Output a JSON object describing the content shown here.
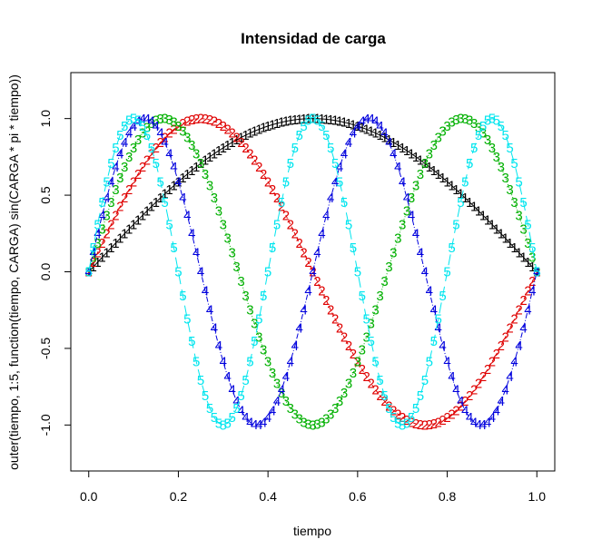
{
  "chart_data": {
    "type": "line",
    "title": "Intensidad de carga",
    "xlabel": "tiempo",
    "ylabel": "outer(tiempo, 1:5, function(tiempo, CARGA) sin(CARGA * pi * tiempo))",
    "xlim": [
      -0.04,
      1.04
    ],
    "ylim": [
      -1.3,
      1.3
    ],
    "x_ticks": [
      0.0,
      0.2,
      0.4,
      0.6,
      0.8,
      1.0
    ],
    "x_tick_labels": [
      "0.0",
      "0.2",
      "0.4",
      "0.6",
      "0.8",
      "1.0"
    ],
    "y_ticks": [
      -1.0,
      -0.5,
      0.0,
      0.5,
      1.0
    ],
    "y_tick_labels": [
      "-1.0",
      "-0.5",
      "0.0",
      "0.5",
      "1.0"
    ],
    "x": [
      0,
      0.01,
      0.02,
      0.03,
      0.04,
      0.05,
      0.06,
      0.07,
      0.08,
      0.09,
      0.1,
      0.11,
      0.12,
      0.13,
      0.14,
      0.15,
      0.16,
      0.17,
      0.18,
      0.19,
      0.2,
      0.21,
      0.22,
      0.23,
      0.24,
      0.25,
      0.26,
      0.27,
      0.28,
      0.29,
      0.3,
      0.31,
      0.32,
      0.33,
      0.34,
      0.35,
      0.36,
      0.37,
      0.38,
      0.39,
      0.4,
      0.41,
      0.42,
      0.43,
      0.44,
      0.45,
      0.46,
      0.47,
      0.48,
      0.49,
      0.5,
      0.51,
      0.52,
      0.53,
      0.54,
      0.55,
      0.56,
      0.57,
      0.58,
      0.59,
      0.6,
      0.61,
      0.62,
      0.63,
      0.64,
      0.65,
      0.66,
      0.67,
      0.68,
      0.69,
      0.7,
      0.71,
      0.72,
      0.73,
      0.74,
      0.75,
      0.76,
      0.77,
      0.78,
      0.79,
      0.8,
      0.81,
      0.82,
      0.83,
      0.84,
      0.85,
      0.86,
      0.87,
      0.88,
      0.89,
      0.9,
      0.91,
      0.92,
      0.93,
      0.94,
      0.95,
      0.96,
      0.97,
      0.98,
      0.99,
      1.0
    ],
    "series": [
      {
        "symbol": "1",
        "color": "#000000",
        "dash": "",
        "values": [
          0,
          0.0314,
          0.0628,
          0.0941,
          0.1253,
          0.1564,
          0.1874,
          0.2181,
          0.2487,
          0.279,
          0.309,
          0.3387,
          0.3681,
          0.3971,
          0.4258,
          0.454,
          0.4818,
          0.509,
          0.5358,
          0.5621,
          0.5878,
          0.6129,
          0.6374,
          0.6613,
          0.6845,
          0.7071,
          0.729,
          0.7501,
          0.7705,
          0.7902,
          0.809,
          0.8271,
          0.8443,
          0.8607,
          0.8763,
          0.891,
          0.9048,
          0.9178,
          0.9298,
          0.9409,
          0.9511,
          0.9603,
          0.9686,
          0.9759,
          0.9823,
          0.9877,
          0.9921,
          0.9956,
          0.998,
          0.9995,
          1.0,
          0.9995,
          0.998,
          0.9956,
          0.9921,
          0.9877,
          0.9823,
          0.9759,
          0.9686,
          0.9603,
          0.9511,
          0.9409,
          0.9298,
          0.9178,
          0.9048,
          0.891,
          0.8763,
          0.8607,
          0.8443,
          0.8271,
          0.809,
          0.7902,
          0.7705,
          0.7501,
          0.729,
          0.7071,
          0.6845,
          0.6613,
          0.6374,
          0.6129,
          0.5878,
          0.5621,
          0.5358,
          0.509,
          0.4818,
          0.454,
          0.4258,
          0.3971,
          0.3681,
          0.3387,
          0.309,
          0.279,
          0.2487,
          0.2181,
          0.1874,
          0.1564,
          0.1253,
          0.0941,
          0.0628,
          0.0314,
          0.0
        ]
      },
      {
        "symbol": "2",
        "color": "#DF0000",
        "dash": "4,3",
        "values": [
          0,
          0.0628,
          0.1253,
          0.1874,
          0.2487,
          0.309,
          0.3681,
          0.4258,
          0.4818,
          0.5358,
          0.5878,
          0.6374,
          0.6845,
          0.729,
          0.7705,
          0.809,
          0.8443,
          0.8763,
          0.9048,
          0.9298,
          0.9511,
          0.9686,
          0.9823,
          0.9921,
          0.998,
          1.0,
          0.998,
          0.9921,
          0.9823,
          0.9686,
          0.9511,
          0.9298,
          0.9048,
          0.8763,
          0.8443,
          0.809,
          0.7705,
          0.729,
          0.6845,
          0.6374,
          0.5878,
          0.5358,
          0.4818,
          0.4258,
          0.3681,
          0.309,
          0.2487,
          0.1874,
          0.1253,
          0.0628,
          0.0,
          -0.0628,
          -0.1253,
          -0.1874,
          -0.2487,
          -0.309,
          -0.3681,
          -0.4258,
          -0.4818,
          -0.5358,
          -0.5878,
          -0.6374,
          -0.6845,
          -0.729,
          -0.7705,
          -0.809,
          -0.8443,
          -0.8763,
          -0.9048,
          -0.9298,
          -0.9511,
          -0.9686,
          -0.9823,
          -0.9921,
          -0.998,
          -1.0,
          -0.998,
          -0.9921,
          -0.9823,
          -0.9686,
          -0.9511,
          -0.9298,
          -0.9048,
          -0.8763,
          -0.8443,
          -0.809,
          -0.7705,
          -0.729,
          -0.6845,
          -0.6374,
          -0.5878,
          -0.5358,
          -0.4818,
          -0.4258,
          -0.3681,
          -0.309,
          -0.2487,
          -0.1874,
          -0.1253,
          -0.0628,
          0.0
        ]
      },
      {
        "symbol": "3",
        "color": "#00B000",
        "dash": "1,2",
        "values": [
          0,
          0.0941,
          0.1874,
          0.279,
          0.3681,
          0.454,
          0.5358,
          0.6129,
          0.6845,
          0.7501,
          0.809,
          0.8607,
          0.9048,
          0.9409,
          0.9686,
          0.9877,
          0.998,
          0.9995,
          0.9921,
          0.9759,
          0.9511,
          0.9178,
          0.8763,
          0.8271,
          0.7705,
          0.7071,
          0.6374,
          0.5621,
          0.4818,
          0.3971,
          0.309,
          0.2181,
          0.1253,
          0.0314,
          -0.0628,
          -0.1564,
          -0.2487,
          -0.3387,
          -0.4258,
          -0.509,
          -0.5878,
          -0.6613,
          -0.729,
          -0.7902,
          -0.8443,
          -0.891,
          -0.9298,
          -0.9603,
          -0.9823,
          -0.9956,
          -1.0,
          -0.9956,
          -0.9823,
          -0.9603,
          -0.9298,
          -0.891,
          -0.8443,
          -0.7902,
          -0.729,
          -0.6613,
          -0.5878,
          -0.509,
          -0.4258,
          -0.3387,
          -0.2487,
          -0.1564,
          -0.0628,
          0.0314,
          0.1253,
          0.2181,
          0.309,
          0.3971,
          0.4818,
          0.5621,
          0.6374,
          0.7071,
          0.7705,
          0.8271,
          0.8763,
          0.9178,
          0.9511,
          0.9759,
          0.9921,
          0.9995,
          0.998,
          0.9877,
          0.9686,
          0.9409,
          0.9048,
          0.8607,
          0.809,
          0.7501,
          0.6845,
          0.6129,
          0.5358,
          0.454,
          0.3681,
          0.279,
          0.1874,
          0.0941,
          0.0
        ]
      },
      {
        "symbol": "4",
        "color": "#0000DD",
        "dash": "6,2,1,2",
        "values": [
          0,
          0.1253,
          0.2487,
          0.3681,
          0.4818,
          0.5878,
          0.6845,
          0.7705,
          0.8443,
          0.9048,
          0.9511,
          0.9823,
          0.998,
          0.998,
          0.9823,
          0.9511,
          0.9048,
          0.8443,
          0.7705,
          0.6845,
          0.5878,
          0.4818,
          0.3681,
          0.2487,
          0.1253,
          0.0,
          -0.1253,
          -0.2487,
          -0.3681,
          -0.4818,
          -0.5878,
          -0.6845,
          -0.7705,
          -0.8443,
          -0.9048,
          -0.9511,
          -0.9823,
          -0.998,
          -0.998,
          -0.9823,
          -0.9511,
          -0.9048,
          -0.8443,
          -0.7705,
          -0.6845,
          -0.5878,
          -0.4818,
          -0.3681,
          -0.2487,
          -0.1253,
          0.0,
          0.1253,
          0.2487,
          0.3681,
          0.4818,
          0.5878,
          0.6845,
          0.7705,
          0.8443,
          0.9048,
          0.9511,
          0.9823,
          0.998,
          0.998,
          0.9823,
          0.9511,
          0.9048,
          0.8443,
          0.7705,
          0.6845,
          0.5878,
          0.4818,
          0.3681,
          0.2487,
          0.1253,
          0.0,
          -0.1253,
          -0.2487,
          -0.3681,
          -0.4818,
          -0.5878,
          -0.6845,
          -0.7705,
          -0.8443,
          -0.9048,
          -0.9511,
          -0.9823,
          -0.998,
          -0.998,
          -0.9823,
          -0.9511,
          -0.9048,
          -0.8443,
          -0.7705,
          -0.6845,
          -0.5878,
          -0.4818,
          -0.3681,
          -0.2487,
          -0.1253,
          0.0
        ]
      },
      {
        "symbol": "5",
        "color": "#00E5EE",
        "dash": "12,6",
        "values": [
          0,
          0.1564,
          0.309,
          0.454,
          0.5878,
          0.7071,
          0.809,
          0.891,
          0.9511,
          0.9877,
          1.0,
          0.9877,
          0.9511,
          0.891,
          0.809,
          0.7071,
          0.5878,
          0.454,
          0.309,
          0.1564,
          0.0,
          -0.1564,
          -0.309,
          -0.454,
          -0.5878,
          -0.7071,
          -0.809,
          -0.891,
          -0.9511,
          -0.9877,
          -1.0,
          -0.9877,
          -0.9511,
          -0.891,
          -0.809,
          -0.7071,
          -0.5878,
          -0.454,
          -0.309,
          -0.1564,
          0.0,
          0.1564,
          0.309,
          0.454,
          0.5878,
          0.7071,
          0.809,
          0.891,
          0.9511,
          0.9877,
          1.0,
          0.9877,
          0.9511,
          0.891,
          0.809,
          0.7071,
          0.5878,
          0.454,
          0.309,
          0.1564,
          0.0,
          -0.1564,
          -0.309,
          -0.454,
          -0.5878,
          -0.7071,
          -0.809,
          -0.891,
          -0.9511,
          -0.9877,
          -1.0,
          -0.9877,
          -0.9511,
          -0.891,
          -0.809,
          -0.7071,
          -0.5878,
          -0.454,
          -0.309,
          -0.1564,
          0.0,
          0.1564,
          0.309,
          0.454,
          0.5878,
          0.7071,
          0.809,
          0.891,
          0.9511,
          0.9877,
          1.0,
          0.9877,
          0.9511,
          0.891,
          0.809,
          0.7071,
          0.5878,
          0.454,
          0.309,
          0.1564,
          0.0
        ]
      }
    ],
    "grid": false,
    "legend": "none"
  }
}
